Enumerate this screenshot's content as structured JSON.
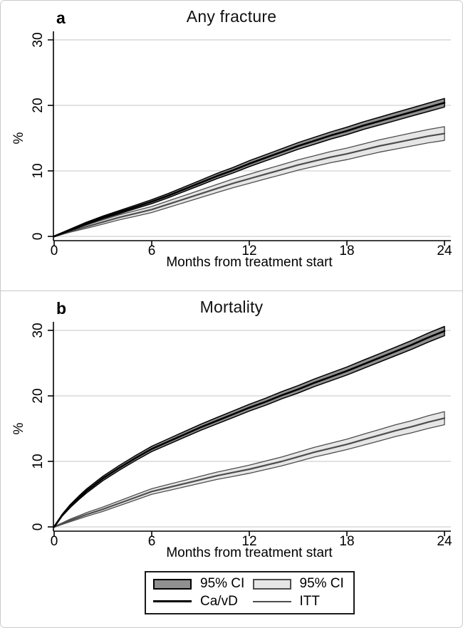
{
  "page": {
    "background": "#ffffff",
    "frame_border": "#c9c9c9"
  },
  "colors": {
    "grid": "#e2e2e2",
    "axis": "#000000",
    "cavd_line": "#000000",
    "cavd_band_fill": "#909090",
    "cavd_band_edge": "#000000",
    "itt_line": "#4d4d4d",
    "itt_band_fill": "#e6e6e6",
    "itt_band_edge": "#4d4d4d"
  },
  "legend": {
    "entries": [
      {
        "key": "cavd-ci",
        "swatch": "band",
        "fill": "#909090",
        "edge": "#000000",
        "label": "95% CI"
      },
      {
        "key": "itt-ci",
        "swatch": "band",
        "fill": "#e6e6e6",
        "edge": "#4d4d4d",
        "label": "95% CI"
      },
      {
        "key": "cavd-line",
        "swatch": "line",
        "fill": "#000000",
        "thickness": 3,
        "label": "Ca/vD"
      },
      {
        "key": "itt-line",
        "swatch": "line",
        "fill": "#4d4d4d",
        "thickness": 2.5,
        "label": "ITT"
      }
    ]
  },
  "chart_data": [
    {
      "panel_label": "a",
      "type": "area",
      "title": "Any fracture",
      "xlabel": "Months from treatment start",
      "ylabel": "%",
      "xlim": [
        0,
        24
      ],
      "ylim": [
        0,
        30
      ],
      "xticks": [
        0,
        6,
        12,
        18,
        24
      ],
      "yticks": [
        0,
        10,
        20,
        30
      ],
      "grid": "horizontal",
      "series": [
        {
          "key": "cavd",
          "name": "Ca/vD",
          "band_label": "95% CI",
          "line_color": "#000000",
          "band_fill": "#909090",
          "band_edge": "#000000",
          "x": [
            0,
            1,
            2,
            3,
            4,
            5,
            6,
            7,
            8,
            9,
            10,
            11,
            12,
            13,
            14,
            15,
            16,
            17,
            18,
            19,
            20,
            21,
            22,
            23,
            24
          ],
          "y": [
            0,
            1.0,
            2.0,
            2.9,
            3.7,
            4.5,
            5.3,
            6.2,
            7.2,
            8.2,
            9.2,
            10.1,
            11.1,
            12.0,
            12.9,
            13.8,
            14.6,
            15.4,
            16.1,
            16.9,
            17.6,
            18.3,
            19.0,
            19.7,
            20.4
          ],
          "ci_half": [
            0.05,
            0.12,
            0.17,
            0.2,
            0.23,
            0.26,
            0.3,
            0.32,
            0.34,
            0.37,
            0.4,
            0.42,
            0.45,
            0.47,
            0.49,
            0.51,
            0.53,
            0.55,
            0.57,
            0.58,
            0.6,
            0.61,
            0.62,
            0.64,
            0.65
          ]
        },
        {
          "key": "itt",
          "name": "ITT",
          "band_label": "95% CI",
          "line_color": "#4d4d4d",
          "band_fill": "#e6e6e6",
          "band_edge": "#4d4d4d",
          "x": [
            0,
            1,
            2,
            3,
            4,
            5,
            6,
            7,
            8,
            9,
            10,
            11,
            12,
            13,
            14,
            15,
            16,
            17,
            18,
            19,
            20,
            21,
            22,
            23,
            24
          ],
          "y": [
            0,
            0.8,
            1.5,
            2.2,
            2.9,
            3.5,
            4.1,
            4.9,
            5.7,
            6.5,
            7.3,
            8.1,
            8.8,
            9.5,
            10.2,
            10.9,
            11.5,
            12.1,
            12.6,
            13.2,
            13.8,
            14.3,
            14.8,
            15.3,
            15.7
          ],
          "ci_half": [
            0.05,
            0.15,
            0.25,
            0.32,
            0.38,
            0.42,
            0.46,
            0.5,
            0.54,
            0.58,
            0.62,
            0.66,
            0.7,
            0.73,
            0.76,
            0.79,
            0.82,
            0.85,
            0.88,
            0.91,
            0.94,
            0.97,
            1.0,
            1.02,
            1.05
          ]
        }
      ]
    },
    {
      "panel_label": "b",
      "type": "area",
      "title": "Mortality",
      "xlabel": "Months from treatment start",
      "ylabel": "%",
      "xlim": [
        0,
        24
      ],
      "ylim": [
        0,
        30
      ],
      "xticks": [
        0,
        6,
        12,
        18,
        24
      ],
      "yticks": [
        0,
        10,
        20,
        30
      ],
      "grid": "horizontal",
      "series": [
        {
          "key": "cavd",
          "name": "Ca/vD",
          "band_label": "95% CI",
          "line_color": "#000000",
          "band_fill": "#909090",
          "band_edge": "#000000",
          "x": [
            0,
            0.5,
            1,
            1.5,
            2,
            3,
            4,
            5,
            6,
            7,
            8,
            9,
            10,
            11,
            12,
            13,
            14,
            15,
            16,
            17,
            18,
            19,
            20,
            21,
            22,
            23,
            24
          ],
          "y": [
            0,
            1.8,
            3.2,
            4.4,
            5.5,
            7.4,
            9.0,
            10.5,
            11.9,
            13.0,
            14.1,
            15.2,
            16.2,
            17.2,
            18.2,
            19.1,
            20.1,
            21.0,
            22.0,
            22.9,
            23.8,
            24.8,
            25.8,
            26.8,
            27.8,
            28.9,
            29.9
          ],
          "ci_half": [
            0.05,
            0.15,
            0.22,
            0.26,
            0.3,
            0.33,
            0.36,
            0.38,
            0.4,
            0.42,
            0.44,
            0.46,
            0.48,
            0.5,
            0.52,
            0.54,
            0.55,
            0.57,
            0.58,
            0.6,
            0.61,
            0.63,
            0.64,
            0.66,
            0.67,
            0.69,
            0.7
          ]
        },
        {
          "key": "itt",
          "name": "ITT",
          "band_label": "95% CI",
          "line_color": "#4d4d4d",
          "band_fill": "#e6e6e6",
          "band_edge": "#4d4d4d",
          "x": [
            0,
            0.5,
            1,
            1.5,
            2,
            3,
            4,
            5,
            6,
            7,
            8,
            9,
            10,
            11,
            12,
            13,
            14,
            15,
            16,
            17,
            18,
            19,
            20,
            21,
            22,
            23,
            24
          ],
          "y": [
            0,
            0.5,
            1.0,
            1.45,
            1.9,
            2.7,
            3.6,
            4.5,
            5.4,
            6.0,
            6.6,
            7.2,
            7.8,
            8.3,
            8.8,
            9.4,
            10.0,
            10.7,
            11.4,
            12.0,
            12.6,
            13.3,
            14.0,
            14.7,
            15.3,
            16.0,
            16.6
          ],
          "ci_half": [
            0.05,
            0.12,
            0.2,
            0.24,
            0.28,
            0.33,
            0.37,
            0.4,
            0.43,
            0.47,
            0.5,
            0.53,
            0.56,
            0.59,
            0.62,
            0.65,
            0.68,
            0.71,
            0.74,
            0.77,
            0.8,
            0.84,
            0.87,
            0.9,
            0.93,
            0.97,
            1.0
          ]
        }
      ]
    }
  ]
}
